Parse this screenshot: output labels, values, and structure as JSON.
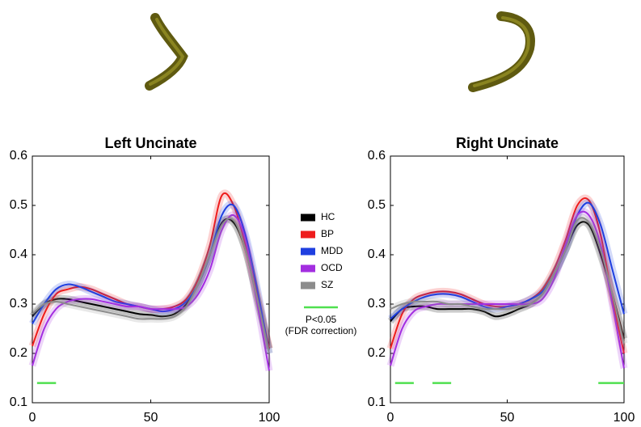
{
  "chart_data": [
    {
      "type": "line",
      "title": "Left Uncinate",
      "x": [
        0,
        5,
        10,
        15,
        20,
        25,
        30,
        35,
        40,
        45,
        50,
        55,
        60,
        65,
        70,
        75,
        80,
        85,
        90,
        95,
        100
      ],
      "xlim": [
        0,
        100
      ],
      "xticks": [
        0,
        50,
        100
      ],
      "ylim": [
        0.1,
        0.6
      ],
      "yticks": [
        0.1,
        0.2,
        0.3,
        0.4,
        0.5,
        0.6
      ],
      "series": [
        {
          "name": "HC",
          "color": "#000000",
          "values": [
            0.275,
            0.3,
            0.31,
            0.31,
            0.305,
            0.3,
            0.295,
            0.29,
            0.285,
            0.28,
            0.278,
            0.275,
            0.28,
            0.3,
            0.34,
            0.4,
            0.465,
            0.465,
            0.41,
            0.31,
            0.21
          ]
        },
        {
          "name": "BP",
          "color": "#ee1c1c",
          "values": [
            0.215,
            0.28,
            0.32,
            0.33,
            0.335,
            0.33,
            0.32,
            0.31,
            0.3,
            0.295,
            0.29,
            0.29,
            0.295,
            0.31,
            0.35,
            0.42,
            0.52,
            0.5,
            0.42,
            0.32,
            0.21
          ]
        },
        {
          "name": "MDD",
          "color": "#1f3fe0",
          "values": [
            0.26,
            0.3,
            0.33,
            0.34,
            0.335,
            0.325,
            0.315,
            0.305,
            0.3,
            0.295,
            0.29,
            0.285,
            0.29,
            0.305,
            0.34,
            0.4,
            0.48,
            0.5,
            0.44,
            0.33,
            0.2
          ]
        },
        {
          "name": "OCD",
          "color": "#a32ee0",
          "values": [
            0.175,
            0.25,
            0.29,
            0.305,
            0.31,
            0.31,
            0.305,
            0.3,
            0.295,
            0.295,
            0.29,
            0.29,
            0.29,
            0.295,
            0.32,
            0.37,
            0.45,
            0.48,
            0.43,
            0.3,
            0.165
          ]
        },
        {
          "name": "SZ",
          "color": "#8c8c8c",
          "values": [
            0.28,
            0.3,
            0.305,
            0.3,
            0.295,
            0.29,
            0.285,
            0.28,
            0.275,
            0.27,
            0.27,
            0.27,
            0.275,
            0.295,
            0.34,
            0.4,
            0.46,
            0.47,
            0.41,
            0.31,
            0.2
          ]
        }
      ],
      "significance": {
        "label": "P<0.05",
        "note": "(FDR correction)",
        "color": "#4fe04f",
        "y": 0.14,
        "ranges": [
          [
            2,
            10
          ]
        ]
      }
    },
    {
      "type": "line",
      "title": "Right Uncinate",
      "x": [
        0,
        5,
        10,
        15,
        20,
        25,
        30,
        35,
        40,
        45,
        50,
        55,
        60,
        65,
        70,
        75,
        80,
        85,
        90,
        95,
        100
      ],
      "xlim": [
        0,
        100
      ],
      "xticks": [
        0,
        50,
        100
      ],
      "ylim": [
        0.1,
        0.6
      ],
      "yticks": [
        0.1,
        0.2,
        0.3,
        0.4,
        0.5,
        0.6
      ],
      "series": [
        {
          "color": "#000000",
          "values": [
            0.265,
            0.29,
            0.295,
            0.295,
            0.29,
            0.29,
            0.29,
            0.29,
            0.285,
            0.275,
            0.28,
            0.29,
            0.3,
            0.32,
            0.36,
            0.41,
            0.46,
            0.46,
            0.4,
            0.32,
            0.23
          ]
        },
        {
          "color": "#ee1c1c",
          "values": [
            0.21,
            0.28,
            0.31,
            0.32,
            0.325,
            0.325,
            0.32,
            0.31,
            0.3,
            0.295,
            0.295,
            0.3,
            0.31,
            0.33,
            0.37,
            0.43,
            0.5,
            0.51,
            0.44,
            0.31,
            0.2
          ]
        },
        {
          "color": "#1f3fe0",
          "values": [
            0.27,
            0.29,
            0.305,
            0.315,
            0.32,
            0.32,
            0.315,
            0.305,
            0.295,
            0.29,
            0.295,
            0.3,
            0.31,
            0.325,
            0.36,
            0.41,
            0.48,
            0.505,
            0.46,
            0.37,
            0.28
          ]
        },
        {
          "color": "#a32ee0",
          "values": [
            0.175,
            0.25,
            0.285,
            0.295,
            0.3,
            0.3,
            0.3,
            0.3,
            0.3,
            0.3,
            0.3,
            0.3,
            0.3,
            0.31,
            0.35,
            0.42,
            0.48,
            0.48,
            0.42,
            0.3,
            0.17
          ]
        },
        {
          "color": "#8c8c8c",
          "values": [
            0.29,
            0.3,
            0.305,
            0.305,
            0.305,
            0.3,
            0.3,
            0.295,
            0.29,
            0.29,
            0.29,
            0.295,
            0.3,
            0.32,
            0.36,
            0.41,
            0.47,
            0.465,
            0.41,
            0.32,
            0.22
          ]
        }
      ],
      "significance": {
        "color": "#4fe04f",
        "y": 0.14,
        "ranges": [
          [
            2,
            10
          ],
          [
            18,
            26
          ],
          [
            89,
            100
          ]
        ]
      }
    }
  ]
}
